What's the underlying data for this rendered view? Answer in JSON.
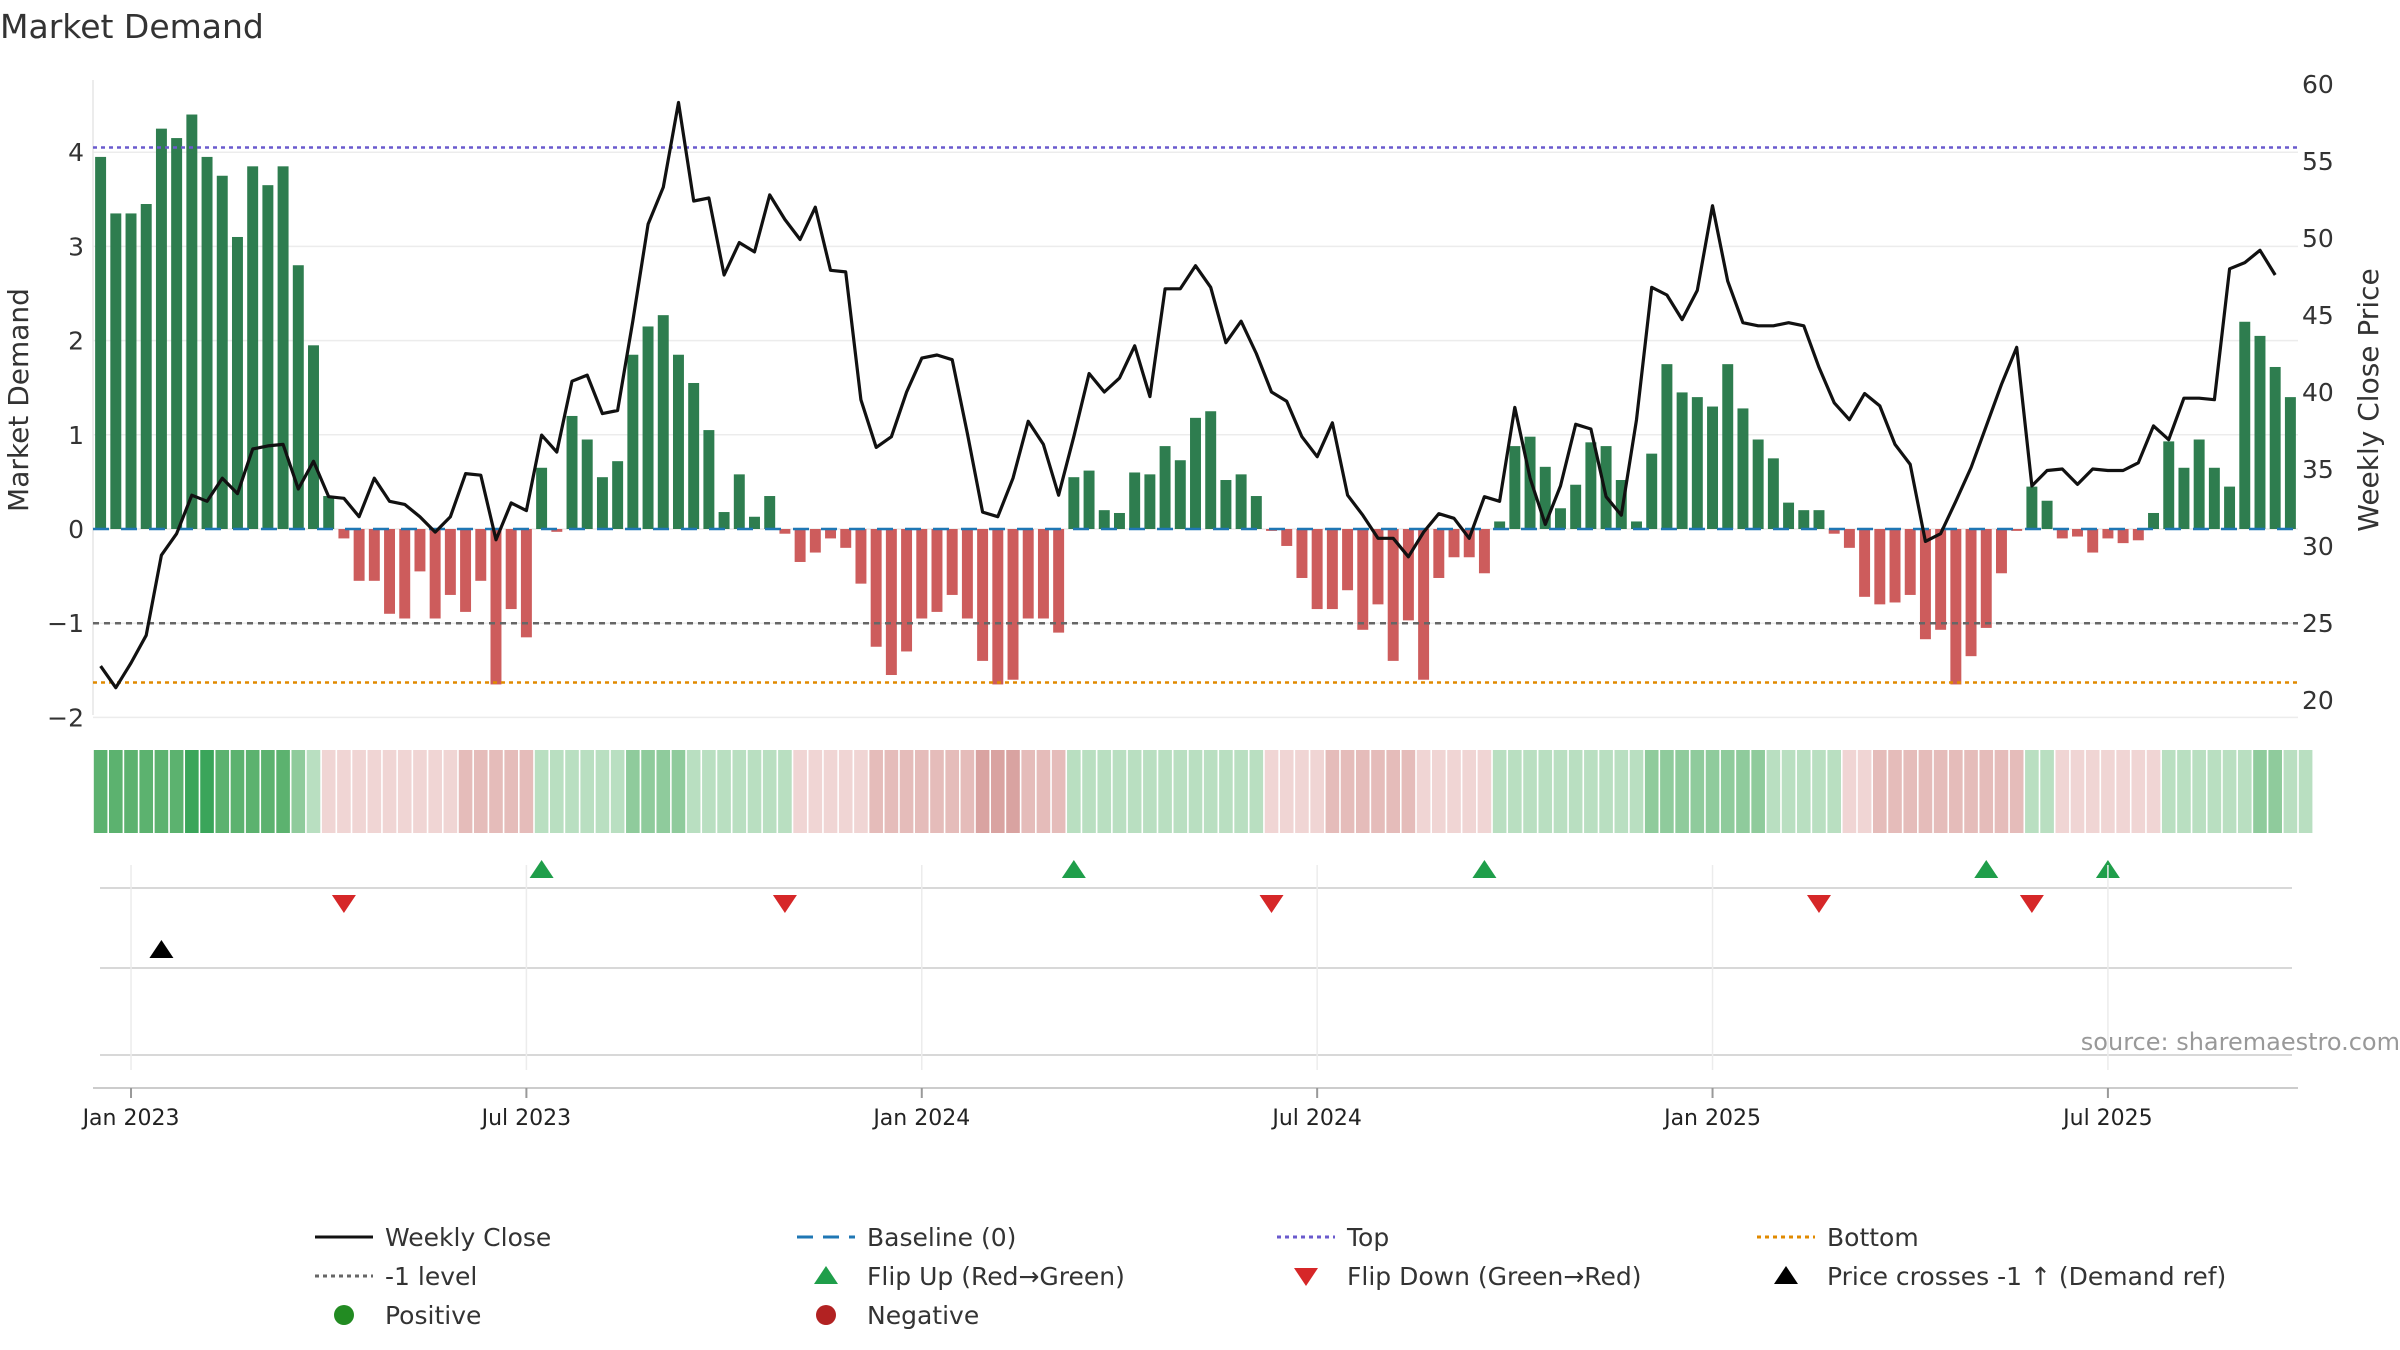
{
  "colors": {
    "positive": "#2e7d4f",
    "negative": "#cd5c5c",
    "price": "#111111",
    "baseline": "#1f77b4",
    "top": "#6a5acd",
    "bottom": "#e08a00",
    "minus_one": "#666666",
    "flip_up": "#1f9e4a",
    "flip_down": "#d62728",
    "cross": "#000000"
  },
  "chart_data": {
    "type": "bar",
    "title": "Market Demand",
    "ylabel": "Market Demand",
    "y2label": "Weekly Close Price",
    "ylim": [
      -2.0,
      4.6
    ],
    "y2lim": [
      19.0,
      61.0
    ],
    "yticks": [
      -2,
      -1,
      0,
      1,
      2,
      3,
      4
    ],
    "ytick_labels": [
      "−2",
      "−1",
      "0",
      "1",
      "2",
      "3",
      "4"
    ],
    "y2ticks": [
      20,
      25,
      30,
      35,
      40,
      45,
      50,
      55,
      60
    ],
    "y2tick_labels": [
      "20",
      "25",
      "30",
      "35",
      "40",
      "45",
      "50",
      "55",
      "60"
    ],
    "xticks": [
      {
        "week": 2,
        "label": "Jan 2023"
      },
      {
        "week": 28,
        "label": "Jul 2023"
      },
      {
        "week": 54,
        "label": "Jan 2024"
      },
      {
        "week": 80,
        "label": "Jul 2024"
      },
      {
        "week": 106,
        "label": "Jan 2025"
      },
      {
        "week": 132,
        "label": "Jul 2025"
      }
    ],
    "reference_lines": {
      "top": 4.05,
      "bottom": -1.63,
      "minus_one": -1.0,
      "baseline": 0
    },
    "demand": [
      3.95,
      3.35,
      3.35,
      3.45,
      4.25,
      4.15,
      4.4,
      3.95,
      3.75,
      3.1,
      3.85,
      3.65,
      3.85,
      2.8,
      1.95,
      0.35,
      -0.1,
      -0.55,
      -0.55,
      -0.9,
      -0.95,
      -0.45,
      -0.95,
      -0.7,
      -0.88,
      -0.55,
      -1.65,
      -0.85,
      -1.15,
      0.65,
      -0.03,
      1.2,
      0.95,
      0.55,
      0.72,
      1.85,
      2.15,
      2.27,
      1.85,
      1.55,
      1.05,
      0.18,
      0.58,
      0.13,
      0.35,
      -0.05,
      -0.35,
      -0.25,
      -0.1,
      -0.2,
      -0.58,
      -1.25,
      -1.55,
      -1.3,
      -0.95,
      -0.88,
      -0.7,
      -0.95,
      -1.4,
      -1.65,
      -1.6,
      -0.95,
      -0.95,
      -1.1,
      0.55,
      0.62,
      0.2,
      0.17,
      0.6,
      0.58,
      0.88,
      0.73,
      1.18,
      1.25,
      0.52,
      0.58,
      0.35,
      -0.02,
      -0.18,
      -0.52,
      -0.85,
      -0.85,
      -0.65,
      -1.07,
      -0.8,
      -1.4,
      -0.97,
      -1.6,
      -0.52,
      -0.3,
      -0.3,
      -0.47,
      0.08,
      0.88,
      0.98,
      0.66,
      0.22,
      0.47,
      0.92,
      0.88,
      0.52,
      0.08,
      0.8,
      1.75,
      1.45,
      1.4,
      1.3,
      1.75,
      1.28,
      0.95,
      0.75,
      0.28,
      0.2,
      0.2,
      -0.05,
      -0.2,
      -0.72,
      -0.8,
      -0.78,
      -0.7,
      -1.17,
      -1.07,
      -1.65,
      -1.35,
      -1.05,
      -0.47,
      -0.02,
      0.45,
      0.3,
      -0.1,
      -0.08,
      -0.25,
      -0.1,
      -0.15,
      -0.12,
      0.17,
      0.93,
      0.65,
      0.95,
      0.65,
      0.45,
      2.2,
      2.05,
      1.72,
      1.4
    ],
    "price": [
      22.2,
      20.8,
      22.4,
      24.2,
      29.4,
      30.8,
      33.3,
      32.9,
      34.4,
      33.4,
      36.3,
      36.5,
      36.6,
      33.7,
      35.5,
      33.2,
      33.1,
      31.9,
      34.4,
      32.9,
      32.7,
      31.9,
      30.9,
      31.9,
      34.7,
      34.6,
      30.4,
      32.8,
      32.3,
      37.2,
      36.1,
      40.7,
      41.1,
      38.6,
      38.8,
      44.6,
      50.9,
      53.3,
      58.8,
      52.4,
      52.6,
      47.6,
      49.7,
      49.1,
      52.8,
      51.2,
      49.9,
      52.0,
      47.9,
      47.8,
      39.5,
      36.4,
      37.1,
      40.0,
      42.2,
      42.4,
      42.1,
      37.3,
      32.2,
      31.9,
      34.4,
      38.1,
      36.6,
      33.3,
      37.1,
      41.2,
      40.0,
      40.9,
      43.0,
      39.7,
      46.7,
      46.7,
      48.2,
      46.8,
      43.2,
      44.6,
      42.5,
      40.0,
      39.4,
      37.1,
      35.8,
      38.0,
      33.3,
      32.0,
      30.5,
      30.5,
      29.3,
      30.9,
      32.1,
      31.8,
      30.5,
      33.2,
      32.9,
      39.0,
      34.4,
      31.4,
      33.9,
      37.9,
      37.6,
      33.2,
      32.0,
      38.2,
      46.8,
      46.3,
      44.7,
      46.6,
      52.1,
      47.2,
      44.5,
      44.3,
      44.3,
      44.5,
      44.3,
      41.6,
      39.3,
      38.2,
      39.9,
      39.1,
      36.6,
      35.3,
      30.3,
      30.8,
      32.9,
      35.1,
      37.8,
      40.5,
      42.9,
      33.9,
      34.9,
      35.0,
      34.0,
      35.0,
      34.9,
      34.9,
      35.4,
      37.8,
      36.9,
      39.6,
      39.6,
      39.5,
      48.0,
      48.4,
      49.2,
      47.6
    ],
    "strip": [
      3,
      3,
      3,
      3,
      3,
      3,
      4,
      4,
      3,
      3,
      3,
      3,
      3,
      2,
      1,
      -1,
      -1,
      -1,
      -1,
      -1,
      -1,
      -1,
      -1,
      -1,
      -2,
      -2,
      -2,
      -2,
      -2,
      1,
      1,
      1,
      1,
      1,
      1,
      2,
      2,
      2,
      2,
      1,
      1,
      1,
      1,
      1,
      1,
      1,
      -1,
      -1,
      -1,
      -1,
      -1,
      -2,
      -2,
      -2,
      -2,
      -2,
      -2,
      -2,
      -3,
      -3,
      -3,
      -2,
      -2,
      -2,
      1,
      1,
      1,
      1,
      1,
      1,
      1,
      1,
      1,
      1,
      1,
      1,
      1,
      -1,
      -1,
      -1,
      -1,
      -2,
      -2,
      -2,
      -2,
      -2,
      -2,
      -1,
      -1,
      -1,
      -1,
      -1,
      1,
      1,
      1,
      1,
      1,
      1,
      1,
      1,
      1,
      1,
      2,
      2,
      2,
      2,
      2,
      2,
      2,
      2,
      1,
      1,
      1,
      1,
      1,
      -1,
      -1,
      -2,
      -2,
      -2,
      -2,
      -2,
      -2,
      -2,
      -2,
      -2,
      -2,
      1,
      1,
      -1,
      -1,
      -1,
      -1,
      -1,
      -1,
      -1,
      1,
      1,
      1,
      1,
      1,
      1,
      2,
      2,
      1,
      1
    ],
    "flip_up_weeks": [
      29,
      64,
      91,
      124,
      132
    ],
    "flip_down_weeks": [
      16,
      45,
      77,
      113,
      127
    ],
    "cross_weeks": [
      4
    ],
    "legend": [
      {
        "key": "price",
        "label": "Weekly Close",
        "symbol": "line-solid"
      },
      {
        "key": "baseline",
        "label": "Baseline (0)",
        "symbol": "line-dashed"
      },
      {
        "key": "top",
        "label": "Top",
        "symbol": "line-dotted"
      },
      {
        "key": "bottom",
        "label": "Bottom",
        "symbol": "line-dotted"
      },
      {
        "key": "minus_one",
        "label": "-1 level",
        "symbol": "line-dotted"
      },
      {
        "key": "flip_up",
        "label": "Flip Up (Red→Green)",
        "symbol": "triangle-up"
      },
      {
        "key": "flip_down",
        "label": "Flip Down (Green→Red)",
        "symbol": "triangle-down"
      },
      {
        "key": "cross",
        "label": "Price crosses -1 ↑ (Demand ref)",
        "symbol": "triangle-up"
      },
      {
        "key": "positive",
        "label": "Positive",
        "symbol": "dot"
      },
      {
        "key": "negative_dot",
        "label": "Negative",
        "symbol": "dot"
      }
    ],
    "source": "source: sharemaestro.com"
  }
}
